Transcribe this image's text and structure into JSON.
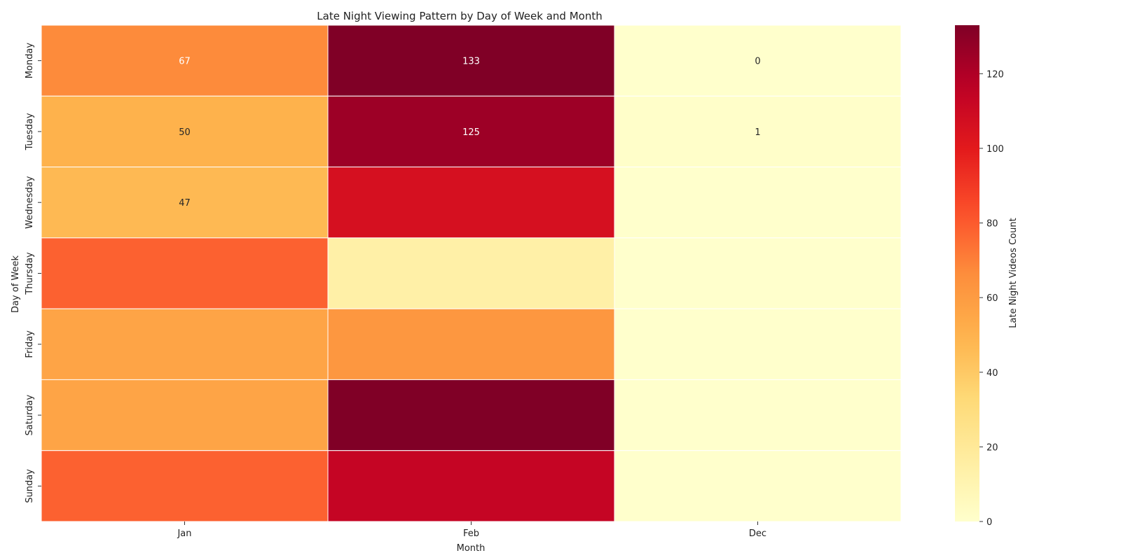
{
  "chart_data": {
    "type": "heatmap",
    "title": "Late Night Viewing Pattern by Day of Week and Month",
    "xlabel": "Month",
    "ylabel": "Day of Week",
    "x_categories": [
      "Jan",
      "Feb",
      "Dec"
    ],
    "y_categories": [
      "Monday",
      "Tuesday",
      "Wednesday",
      "Thursday",
      "Friday",
      "Saturday",
      "Sunday"
    ],
    "values": [
      [
        67,
        133,
        0
      ],
      [
        50,
        125,
        1
      ],
      [
        47,
        106,
        0
      ],
      [
        78,
        14,
        0
      ],
      [
        56,
        62,
        0
      ],
      [
        56,
        133,
        0
      ],
      [
        78,
        113,
        0
      ]
    ],
    "annotations": [
      [
        "67",
        "133",
        "0"
      ],
      [
        "50",
        "125",
        "1"
      ],
      [
        "47",
        "",
        ""
      ],
      [
        "",
        "",
        ""
      ],
      [
        "",
        "",
        ""
      ],
      [
        "",
        "",
        ""
      ],
      [
        "",
        "",
        ""
      ]
    ],
    "colorbar": {
      "label": "Late Night Videos Count",
      "min": 0,
      "max": 133,
      "ticks": [
        0,
        20,
        40,
        60,
        80,
        100,
        120
      ],
      "colormap": "YlOrRd"
    }
  }
}
